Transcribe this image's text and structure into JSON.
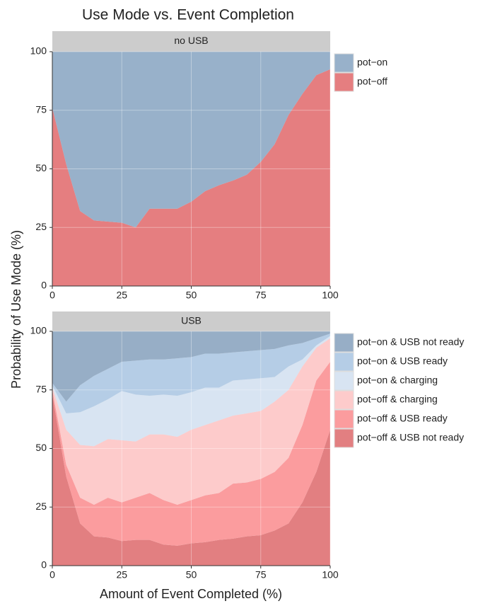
{
  "title": "Use Mode vs. Event Completion",
  "x_label": "Amount of Event Completed (%)",
  "y_label": "Probability of Use Mode (%)",
  "chart_data": [
    {
      "type": "area",
      "stacked": true,
      "title": "no USB",
      "legend": "right",
      "grid": true,
      "x": [
        0,
        5,
        10,
        15,
        20,
        25,
        30,
        35,
        40,
        45,
        50,
        55,
        60,
        65,
        70,
        75,
        80,
        85,
        90,
        95,
        100
      ],
      "xlim": [
        0,
        100
      ],
      "ylim": [
        0,
        100
      ],
      "xticks": [
        0,
        25,
        50,
        75,
        100
      ],
      "yticks": [
        0,
        25,
        50,
        75,
        100
      ],
      "series": [
        {
          "name": "pot−on",
          "color": "#98b1ca",
          "values": [
            24,
            48,
            68,
            72,
            72.5,
            73,
            75,
            67,
            67,
            67,
            64,
            59.5,
            57,
            55,
            52.5,
            47,
            39.5,
            27,
            18,
            10,
            7.5
          ]
        },
        {
          "name": "pot−off",
          "color": "#e57e80",
          "values": [
            76,
            52,
            32,
            28,
            27.5,
            27,
            25,
            33,
            33,
            33,
            36,
            40.5,
            43,
            45,
            47.5,
            53,
            60.5,
            73,
            82,
            90,
            92.5
          ]
        }
      ]
    },
    {
      "type": "area",
      "stacked": true,
      "title": "USB",
      "legend": "right",
      "grid": true,
      "x": [
        0,
        5,
        10,
        15,
        20,
        25,
        30,
        35,
        40,
        45,
        50,
        55,
        60,
        65,
        70,
        75,
        80,
        85,
        90,
        95,
        100
      ],
      "xlim": [
        0,
        100
      ],
      "ylim": [
        0,
        100
      ],
      "xticks": [
        0,
        25,
        50,
        75,
        100
      ],
      "yticks": [
        0,
        25,
        50,
        75,
        100
      ],
      "series": [
        {
          "name": "pot−on & USB not ready",
          "color": "#97aec6",
          "values": [
            22,
            30,
            23,
            19,
            16,
            13,
            12.5,
            12,
            12,
            11.5,
            11,
            9.5,
            9.5,
            9,
            8.5,
            8,
            7.5,
            6,
            5,
            3,
            1
          ]
        },
        {
          "name": "pot−on & USB ready",
          "color": "#b5cde6",
          "values": [
            1,
            5,
            11.5,
            13,
            13,
            12.5,
            14.5,
            15.5,
            15,
            16,
            15,
            14.5,
            14.5,
            12,
            12,
            12,
            12,
            9,
            7,
            3,
            1
          ]
        },
        {
          "name": "pot−on & charging",
          "color": "#d8e4f2",
          "values": [
            1,
            7,
            14,
            17,
            17,
            21,
            20,
            16.5,
            17,
            17.5,
            16,
            16,
            14,
            15,
            14.5,
            14,
            10.5,
            10,
            3,
            1,
            1
          ]
        },
        {
          "name": "pot−off & charging",
          "color": "#fdcbcb",
          "values": [
            1,
            15,
            22.5,
            25,
            25,
            26.5,
            24,
            25,
            28,
            29,
            30,
            30,
            31,
            29,
            29.5,
            29,
            30,
            29,
            25,
            14,
            10
          ]
        },
        {
          "name": "pot−off & USB ready",
          "color": "#fb9c9e",
          "values": [
            2,
            5,
            11,
            13.5,
            17,
            16.5,
            18,
            20,
            19,
            17.5,
            18.5,
            20,
            20,
            23.5,
            23,
            24,
            25,
            28,
            33,
            39,
            29
          ]
        },
        {
          "name": "pot−off & USB not ready",
          "color": "#e27f81",
          "values": [
            73,
            38,
            18,
            12.5,
            12,
            10.5,
            11,
            11,
            9,
            8.5,
            9.5,
            10,
            11,
            11.5,
            12.5,
            13,
            15,
            18,
            27,
            40,
            58
          ]
        }
      ]
    }
  ]
}
